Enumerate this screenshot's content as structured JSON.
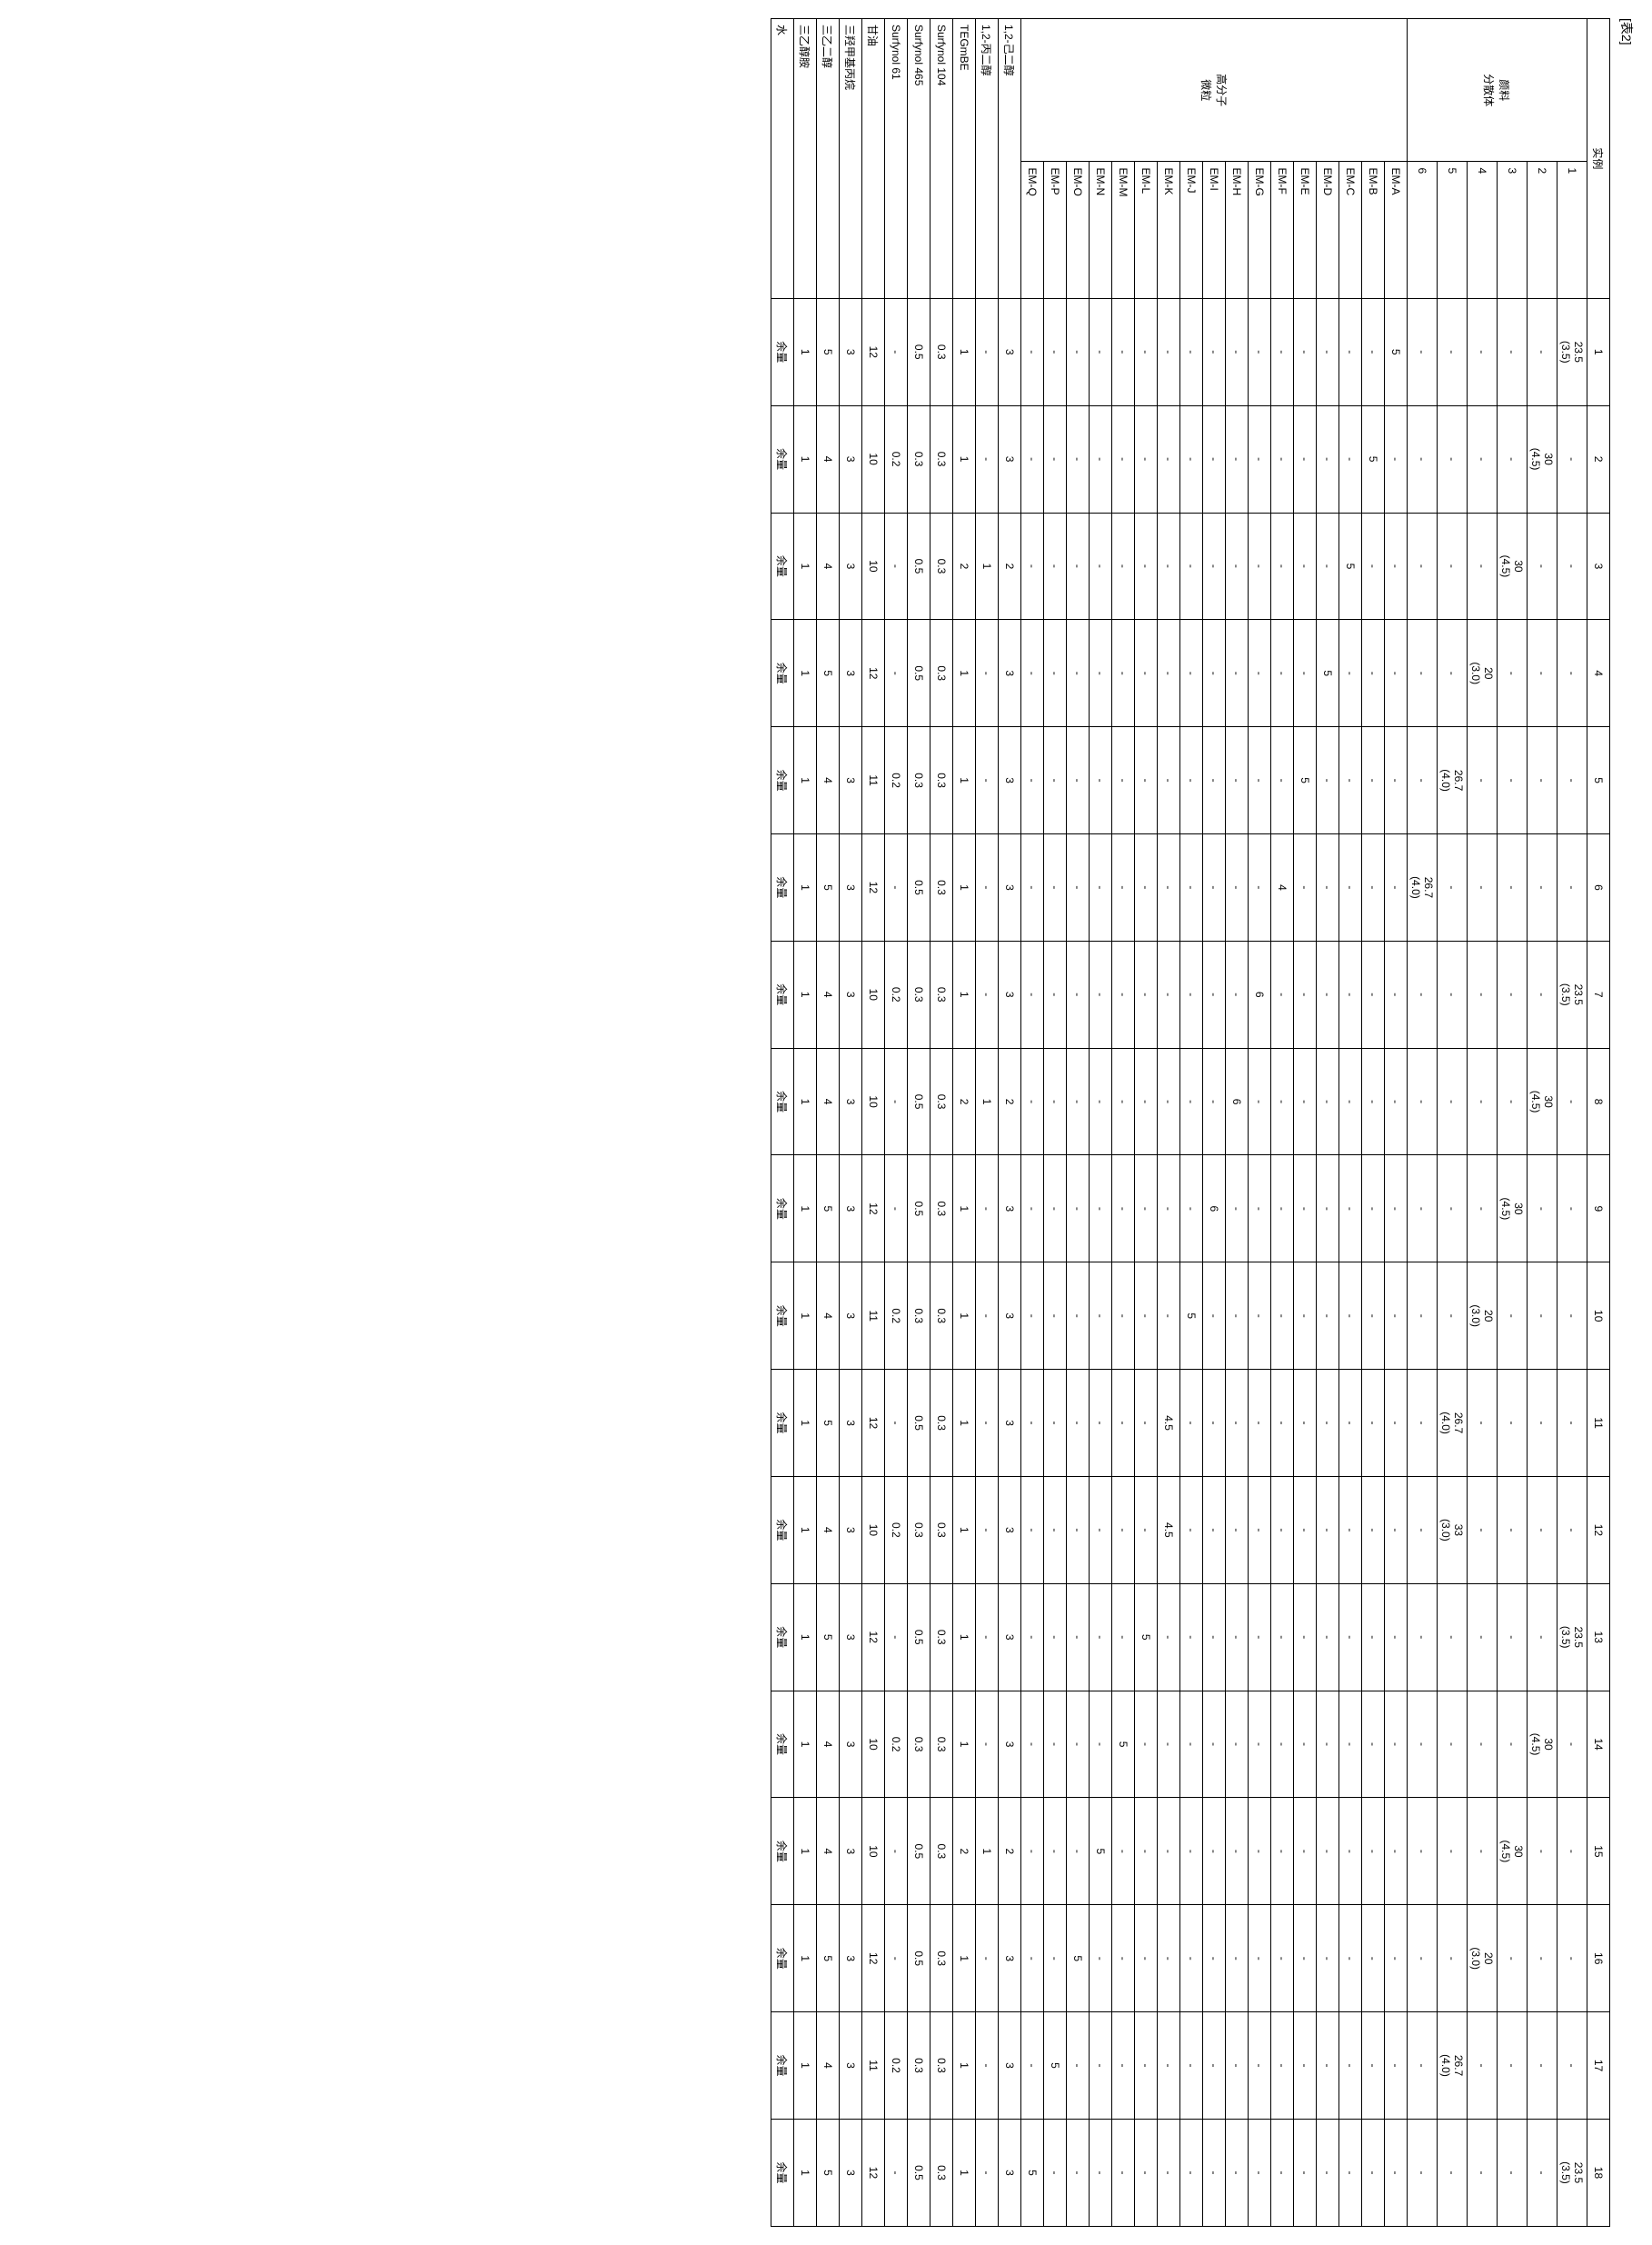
{
  "table_label": "[表2]",
  "header_label": "实例",
  "columns": [
    "1",
    "2",
    "3",
    "4",
    "5",
    "6",
    "7",
    "8",
    "9",
    "10",
    "11",
    "12",
    "13",
    "14",
    "15",
    "16",
    "17",
    "18"
  ],
  "group1_label": "颜料\n分散体",
  "group1_rows": [
    {
      "label": "1",
      "cells": [
        "23.5\n(3.5)",
        "-",
        "-",
        "-",
        "-",
        "-",
        "23.5\n(3.5)",
        "-",
        "-",
        "-",
        "-",
        "-",
        "23.5\n(3.5)",
        "-",
        "-",
        "-",
        "-",
        "23.5\n(3.5)"
      ]
    },
    {
      "label": "2",
      "cells": [
        "-",
        "30\n(4.5)",
        "-",
        "-",
        "-",
        "-",
        "-",
        "30\n(4.5)",
        "-",
        "-",
        "-",
        "-",
        "-",
        "30\n(4.5)",
        "-",
        "-",
        "-",
        "-"
      ]
    },
    {
      "label": "3",
      "cells": [
        "-",
        "-",
        "30\n(4.5)",
        "-",
        "-",
        "-",
        "-",
        "-",
        "30\n(4.5)",
        "-",
        "-",
        "-",
        "-",
        "-",
        "30\n(4.5)",
        "-",
        "-",
        "-"
      ]
    },
    {
      "label": "4",
      "cells": [
        "-",
        "-",
        "-",
        "20\n(3.0)",
        "-",
        "-",
        "-",
        "-",
        "-",
        "20\n(3.0)",
        "-",
        "-",
        "-",
        "-",
        "-",
        "20\n(3.0)",
        "-",
        "-"
      ]
    },
    {
      "label": "5",
      "cells": [
        "-",
        "-",
        "-",
        "-",
        "26.7\n(4.0)",
        "-",
        "-",
        "-",
        "-",
        "-",
        "26.7\n(4.0)",
        "33\n(3.0)",
        "-",
        "-",
        "-",
        "-",
        "26.7\n(4.0)",
        "-"
      ]
    },
    {
      "label": "6",
      "cells": [
        "-",
        "-",
        "-",
        "-",
        "-",
        "26.7\n(4.0)",
        "-",
        "-",
        "-",
        "-",
        "-",
        "-",
        "-",
        "-",
        "-",
        "-",
        "-",
        "-"
      ]
    }
  ],
  "group2_label": "高分子\n微粒",
  "group2_rows": [
    {
      "label": "EM-A",
      "cells": [
        "5",
        "-",
        "-",
        "-",
        "-",
        "-",
        "-",
        "-",
        "-",
        "-",
        "-",
        "-",
        "-",
        "-",
        "-",
        "-",
        "-",
        "-"
      ]
    },
    {
      "label": "EM-B",
      "cells": [
        "-",
        "5",
        "-",
        "-",
        "-",
        "-",
        "-",
        "-",
        "-",
        "-",
        "-",
        "-",
        "-",
        "-",
        "-",
        "-",
        "-",
        "-"
      ]
    },
    {
      "label": "EM-C",
      "cells": [
        "-",
        "-",
        "5",
        "-",
        "-",
        "-",
        "-",
        "-",
        "-",
        "-",
        "-",
        "-",
        "-",
        "-",
        "-",
        "-",
        "-",
        "-"
      ]
    },
    {
      "label": "EM-D",
      "cells": [
        "-",
        "-",
        "-",
        "5",
        "-",
        "-",
        "-",
        "-",
        "-",
        "-",
        "-",
        "-",
        "-",
        "-",
        "-",
        "-",
        "-",
        "-"
      ]
    },
    {
      "label": "EM-E",
      "cells": [
        "-",
        "-",
        "-",
        "-",
        "5",
        "-",
        "-",
        "-",
        "-",
        "-",
        "-",
        "-",
        "-",
        "-",
        "-",
        "-",
        "-",
        "-"
      ]
    },
    {
      "label": "EM-F",
      "cells": [
        "-",
        "-",
        "-",
        "-",
        "-",
        "4",
        "-",
        "-",
        "-",
        "-",
        "-",
        "-",
        "-",
        "-",
        "-",
        "-",
        "-",
        "-"
      ]
    },
    {
      "label": "EM-G",
      "cells": [
        "-",
        "-",
        "-",
        "-",
        "-",
        "-",
        "6",
        "-",
        "-",
        "-",
        "-",
        "-",
        "-",
        "-",
        "-",
        "-",
        "-",
        "-"
      ]
    },
    {
      "label": "EM-H",
      "cells": [
        "-",
        "-",
        "-",
        "-",
        "-",
        "-",
        "-",
        "6",
        "-",
        "-",
        "-",
        "-",
        "-",
        "-",
        "-",
        "-",
        "-",
        "-"
      ]
    },
    {
      "label": "EM-I",
      "cells": [
        "-",
        "-",
        "-",
        "-",
        "-",
        "-",
        "-",
        "-",
        "6",
        "-",
        "-",
        "-",
        "-",
        "-",
        "-",
        "-",
        "-",
        "-"
      ]
    },
    {
      "label": "EM-J",
      "cells": [
        "-",
        "-",
        "-",
        "-",
        "-",
        "-",
        "-",
        "-",
        "-",
        "5",
        "-",
        "-",
        "-",
        "-",
        "-",
        "-",
        "-",
        "-"
      ]
    },
    {
      "label": "EM-K",
      "cells": [
        "-",
        "-",
        "-",
        "-",
        "-",
        "-",
        "-",
        "-",
        "-",
        "-",
        "4.5",
        "4.5",
        "-",
        "-",
        "-",
        "-",
        "-",
        "-"
      ]
    },
    {
      "label": "EM-L",
      "cells": [
        "-",
        "-",
        "-",
        "-",
        "-",
        "-",
        "-",
        "-",
        "-",
        "-",
        "-",
        "-",
        "5",
        "-",
        "-",
        "-",
        "-",
        "-"
      ]
    },
    {
      "label": "EM-M",
      "cells": [
        "-",
        "-",
        "-",
        "-",
        "-",
        "-",
        "-",
        "-",
        "-",
        "-",
        "-",
        "-",
        "-",
        "5",
        "-",
        "-",
        "-",
        "-"
      ]
    },
    {
      "label": "EM-N",
      "cells": [
        "-",
        "-",
        "-",
        "-",
        "-",
        "-",
        "-",
        "-",
        "-",
        "-",
        "-",
        "-",
        "-",
        "-",
        "5",
        "-",
        "-",
        "-"
      ]
    },
    {
      "label": "EM-O",
      "cells": [
        "-",
        "-",
        "-",
        "-",
        "-",
        "-",
        "-",
        "-",
        "-",
        "-",
        "-",
        "-",
        "-",
        "-",
        "-",
        "5",
        "-",
        "-"
      ]
    },
    {
      "label": "EM-P",
      "cells": [
        "-",
        "-",
        "-",
        "-",
        "-",
        "-",
        "-",
        "-",
        "-",
        "-",
        "-",
        "-",
        "-",
        "-",
        "-",
        "-",
        "5",
        "-"
      ]
    },
    {
      "label": "EM-Q",
      "cells": [
        "-",
        "-",
        "-",
        "-",
        "-",
        "-",
        "-",
        "-",
        "-",
        "-",
        "-",
        "-",
        "-",
        "-",
        "-",
        "-",
        "-",
        "5"
      ]
    }
  ],
  "group3_rows": [
    {
      "label": "1,2-己二醇",
      "cells": [
        "3",
        "3",
        "2",
        "3",
        "3",
        "3",
        "3",
        "2",
        "3",
        "3",
        "3",
        "3",
        "3",
        "3",
        "2",
        "3",
        "3",
        "3"
      ]
    },
    {
      "label": "1,2-丙二醇",
      "cells": [
        "-",
        "-",
        "1",
        "-",
        "-",
        "-",
        "-",
        "1",
        "-",
        "-",
        "-",
        "-",
        "-",
        "-",
        "1",
        "-",
        "-",
        "-"
      ]
    },
    {
      "label": "TEGmBE",
      "cells": [
        "1",
        "1",
        "2",
        "1",
        "1",
        "1",
        "1",
        "2",
        "1",
        "1",
        "1",
        "1",
        "1",
        "1",
        "2",
        "1",
        "1",
        "1"
      ]
    },
    {
      "label": "Surfynol 104",
      "cells": [
        "0.3",
        "0.3",
        "0.3",
        "0.3",
        "0.3",
        "0.3",
        "0.3",
        "0.3",
        "0.3",
        "0.3",
        "0.3",
        "0.3",
        "0.3",
        "0.3",
        "0.3",
        "0.3",
        "0.3",
        "0.3"
      ]
    },
    {
      "label": "Surfynol 465",
      "cells": [
        "0.5",
        "0.3",
        "0.5",
        "0.5",
        "0.3",
        "0.5",
        "0.3",
        "0.5",
        "0.5",
        "0.3",
        "0.5",
        "0.3",
        "0.5",
        "0.3",
        "0.5",
        "0.5",
        "0.3",
        "0.5"
      ]
    },
    {
      "label": "Surfynol 61",
      "cells": [
        "-",
        "0.2",
        "-",
        "-",
        "0.2",
        "-",
        "0.2",
        "-",
        "-",
        "0.2",
        "-",
        "0.2",
        "-",
        "0.2",
        "-",
        "-",
        "0.2",
        "-"
      ]
    },
    {
      "label": "甘油",
      "cells": [
        "12",
        "10",
        "10",
        "12",
        "11",
        "12",
        "10",
        "10",
        "12",
        "11",
        "12",
        "10",
        "12",
        "10",
        "10",
        "12",
        "11",
        "12"
      ]
    },
    {
      "label": "三羟甲基丙烷",
      "cells": [
        "3",
        "3",
        "3",
        "3",
        "3",
        "3",
        "3",
        "3",
        "3",
        "3",
        "3",
        "3",
        "3",
        "3",
        "3",
        "3",
        "3",
        "3"
      ]
    },
    {
      "label": "三乙二醇",
      "cells": [
        "5",
        "4",
        "4",
        "5",
        "4",
        "5",
        "4",
        "4",
        "5",
        "4",
        "5",
        "4",
        "5",
        "4",
        "4",
        "5",
        "4",
        "5"
      ]
    },
    {
      "label": "三乙醇胺",
      "cells": [
        "1",
        "1",
        "1",
        "1",
        "1",
        "1",
        "1",
        "1",
        "1",
        "1",
        "1",
        "1",
        "1",
        "1",
        "1",
        "1",
        "1",
        "1"
      ]
    },
    {
      "label": "水",
      "cells": [
        "余量",
        "余量",
        "余量",
        "余量",
        "余量",
        "余量",
        "余量",
        "余量",
        "余量",
        "余量",
        "余量",
        "余量",
        "余量",
        "余量",
        "余量",
        "余量",
        "余量",
        "余量"
      ]
    }
  ]
}
